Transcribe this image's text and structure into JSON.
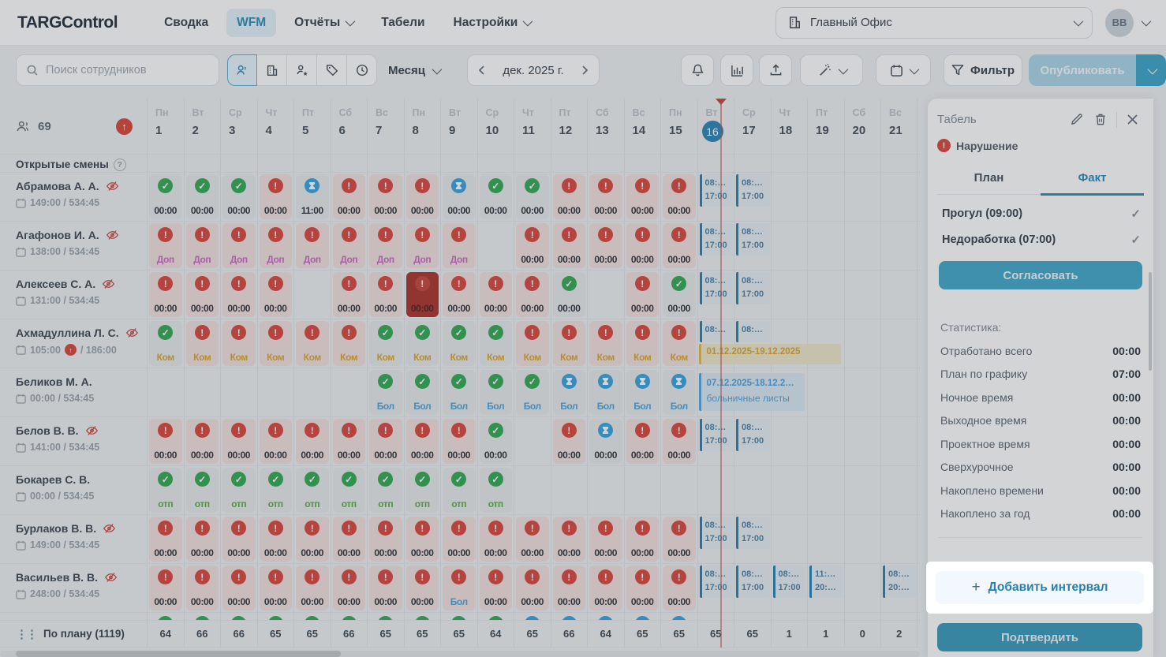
{
  "topnav": {
    "logo": "TARGControl",
    "items": [
      {
        "label": "Сводка",
        "active": false,
        "dropdown": false
      },
      {
        "label": "WFM",
        "active": true,
        "dropdown": false
      },
      {
        "label": "Отчёты",
        "active": false,
        "dropdown": true
      },
      {
        "label": "Табели",
        "active": false,
        "dropdown": false
      },
      {
        "label": "Настройки",
        "active": false,
        "dropdown": true
      }
    ],
    "office": "Главный Офис",
    "avatar": "BB"
  },
  "toolbar": {
    "search_placeholder": "Поиск сотрудников",
    "view_label": "Месяц",
    "period": "дек. 2025 г.",
    "filter_label": "Фильтр",
    "publish_label": "Опубликовать"
  },
  "icons": {
    "toolbar_group": [
      "employees-icon",
      "departments-icon",
      "positions-icon",
      "tags-icon",
      "shifts-icon"
    ],
    "toolbar_right": [
      "bell-icon",
      "chart-icon",
      "upload-icon",
      "magic-wand-icon",
      "calendar-icon",
      "funnel-icon"
    ]
  },
  "grid": {
    "employee_count": "69",
    "open_shifts_label": "Открытые смены",
    "current_day": "16",
    "days": [
      {
        "dw": "Пн",
        "n": "1"
      },
      {
        "dw": "Вт",
        "n": "2"
      },
      {
        "dw": "Ср",
        "n": "3"
      },
      {
        "dw": "Чт",
        "n": "4"
      },
      {
        "dw": "Пт",
        "n": "5"
      },
      {
        "dw": "Сб",
        "n": "6"
      },
      {
        "dw": "Вс",
        "n": "7"
      },
      {
        "dw": "Пн",
        "n": "8"
      },
      {
        "dw": "Вт",
        "n": "9"
      },
      {
        "dw": "Ср",
        "n": "10"
      },
      {
        "dw": "Чт",
        "n": "11"
      },
      {
        "dw": "Пт",
        "n": "12"
      },
      {
        "dw": "Сб",
        "n": "13"
      },
      {
        "dw": "Вс",
        "n": "14"
      },
      {
        "dw": "Пн",
        "n": "15"
      },
      {
        "dw": "Вт",
        "n": "16"
      },
      {
        "dw": "Ср",
        "n": "17"
      },
      {
        "dw": "Чт",
        "n": "18"
      },
      {
        "dw": "Пт",
        "n": "19"
      },
      {
        "dw": "Сб",
        "n": "20"
      },
      {
        "dw": "Вс",
        "n": "21"
      }
    ],
    "employees": [
      {
        "name": "Абрамова А. А.",
        "hidden": true,
        "hours": "149:00 / 534:45",
        "cells": [
          {
            "t": "ok",
            "v": "00:00"
          },
          {
            "t": "ok",
            "v": "00:00"
          },
          {
            "t": "ok",
            "v": "00:00"
          },
          {
            "t": "viol",
            "v": "00:00"
          },
          {
            "t": "wait",
            "v": "11:00"
          },
          {
            "t": "viol",
            "v": "00:00"
          },
          {
            "t": "viol",
            "v": "00:00"
          },
          {
            "t": "viol",
            "v": "00:00"
          },
          {
            "t": "wait",
            "v": "00:00"
          },
          {
            "t": "ok",
            "v": "00:00"
          },
          {
            "t": "ok",
            "v": "00:00"
          },
          {
            "t": "viol",
            "v": "00:00"
          },
          {
            "t": "viol",
            "v": "00:00"
          },
          {
            "t": "viol",
            "v": "00:00"
          },
          {
            "t": "viol",
            "v": "00:00"
          },
          {
            "t": "int",
            "a": "08:…",
            "b": "17:00"
          },
          {
            "t": "int",
            "a": "08:…",
            "b": "17:00"
          },
          null,
          null,
          null,
          null
        ]
      },
      {
        "name": "Агафонов И. А.",
        "hidden": true,
        "hours": "138:00 / 534:45",
        "cells": [
          {
            "t": "viol",
            "v": "Доп",
            "c": "dop"
          },
          {
            "t": "viol",
            "v": "Доп",
            "c": "dop"
          },
          {
            "t": "viol",
            "v": "Доп",
            "c": "dop"
          },
          {
            "t": "viol",
            "v": "Доп",
            "c": "dop"
          },
          {
            "t": "viol",
            "v": "Доп",
            "c": "dop"
          },
          {
            "t": "viol",
            "v": "Доп",
            "c": "dop"
          },
          {
            "t": "viol",
            "v": "Доп",
            "c": "dop"
          },
          {
            "t": "viol",
            "v": "Доп",
            "c": "dop"
          },
          {
            "t": "viol",
            "v": "Доп",
            "c": "dop"
          },
          null,
          {
            "t": "viol",
            "v": "00:00"
          },
          {
            "t": "viol",
            "v": "00:00"
          },
          {
            "t": "viol",
            "v": "00:00"
          },
          {
            "t": "viol",
            "v": "00:00"
          },
          {
            "t": "viol",
            "v": "00:00"
          },
          {
            "t": "int",
            "a": "08:…",
            "b": "17:00"
          },
          {
            "t": "int",
            "a": "08:…",
            "b": "17:00"
          },
          null,
          null,
          null,
          null
        ]
      },
      {
        "name": "Алексеев С. А.",
        "hidden": true,
        "hours": "131:00 / 534:45",
        "cells": [
          {
            "t": "viol",
            "v": "00:00"
          },
          {
            "t": "viol",
            "v": "00:00"
          },
          {
            "t": "viol",
            "v": "00:00"
          },
          {
            "t": "viol",
            "v": "00:00"
          },
          null,
          {
            "t": "viol",
            "v": "00:00"
          },
          {
            "t": "viol",
            "v": "00:00"
          },
          {
            "t": "sel",
            "v": "00:00"
          },
          {
            "t": "viol",
            "v": "00:00"
          },
          {
            "t": "viol",
            "v": "00:00"
          },
          {
            "t": "viol",
            "v": "00:00"
          },
          {
            "t": "ok",
            "v": "00:00"
          },
          null,
          {
            "t": "viol",
            "v": "00:00"
          },
          {
            "t": "ok",
            "v": "00:00"
          },
          {
            "t": "int",
            "a": "08:…",
            "b": "17:00"
          },
          {
            "t": "int",
            "a": "08:…",
            "b": "17:00"
          },
          null,
          null,
          null,
          null
        ]
      },
      {
        "name": "Ахмадуллина Л. С.",
        "hidden": true,
        "hours": "105:00",
        "hours2": "/ 186:00",
        "hours_alert": true,
        "cells": [
          {
            "t": "ok",
            "v": "Ком",
            "c": "kom"
          },
          {
            "t": "viol",
            "v": "Ком",
            "c": "kom"
          },
          {
            "t": "viol",
            "v": "Ком",
            "c": "kom"
          },
          {
            "t": "viol",
            "v": "Ком",
            "c": "kom"
          },
          {
            "t": "viol",
            "v": "Ком",
            "c": "kom"
          },
          {
            "t": "viol",
            "v": "Ком",
            "c": "kom"
          },
          {
            "t": "ok",
            "v": "Ком",
            "c": "kom"
          },
          {
            "t": "ok",
            "v": "Ком",
            "c": "kom"
          },
          {
            "t": "ok",
            "v": "Ком",
            "c": "kom"
          },
          {
            "t": "ok",
            "v": "Ком",
            "c": "kom"
          },
          {
            "t": "viol",
            "v": "Ком",
            "c": "kom"
          },
          {
            "t": "viol",
            "v": "Ком",
            "c": "kom"
          },
          {
            "t": "viol",
            "v": "Ком",
            "c": "kom"
          },
          {
            "t": "viol",
            "v": "Ком",
            "c": "kom"
          },
          {
            "t": "viol",
            "v": "Ком",
            "c": "kom"
          },
          {
            "t": "int",
            "a": "08:…"
          },
          {
            "t": "int",
            "a": "08:…"
          },
          null,
          null,
          null,
          null
        ],
        "banner": {
          "day": 16,
          "w": 180,
          "color": "orange",
          "lines": [
            "01.12.2025-19.12.2025"
          ]
        }
      },
      {
        "name": "Беликов М. А.",
        "hidden": false,
        "hours": "00:00 / 534:45",
        "cells": [
          null,
          null,
          null,
          null,
          null,
          null,
          {
            "t": "ok",
            "v": "Бол",
            "c": "bol"
          },
          {
            "t": "ok",
            "v": "Бол",
            "c": "bol"
          },
          {
            "t": "ok",
            "v": "Бол",
            "c": "bol"
          },
          {
            "t": "ok",
            "v": "Бол",
            "c": "bol"
          },
          {
            "t": "ok",
            "v": "Бол",
            "c": "bol"
          },
          {
            "t": "wait",
            "v": "Бол",
            "c": "bol"
          },
          {
            "t": "wait",
            "v": "Бол",
            "c": "bol"
          },
          {
            "t": "wait",
            "v": "Бол",
            "c": "bol"
          },
          {
            "t": "wait",
            "v": "Бол",
            "c": "bol"
          },
          null,
          null,
          null,
          null,
          null,
          null
        ],
        "banner": {
          "day": 16,
          "w": 134,
          "color": "blue",
          "lines": [
            "07.12.2025-18.12.2…",
            "больничные листы"
          ]
        }
      },
      {
        "name": "Белов В. В.",
        "hidden": true,
        "hours": "141:00 / 534:45",
        "cells": [
          {
            "t": "viol",
            "v": "00:00"
          },
          {
            "t": "viol",
            "v": "00:00"
          },
          {
            "t": "viol",
            "v": "00:00"
          },
          {
            "t": "viol",
            "v": "00:00"
          },
          {
            "t": "viol",
            "v": "00:00"
          },
          {
            "t": "viol",
            "v": "00:00"
          },
          {
            "t": "viol",
            "v": "00:00"
          },
          {
            "t": "viol",
            "v": "00:00"
          },
          {
            "t": "viol",
            "v": "00:00"
          },
          {
            "t": "ok",
            "v": "00:00"
          },
          null,
          {
            "t": "viol",
            "v": "00:00"
          },
          {
            "t": "wait",
            "v": "00:00"
          },
          {
            "t": "viol",
            "v": "00:00"
          },
          {
            "t": "viol",
            "v": "00:00"
          },
          {
            "t": "int",
            "a": "08:…",
            "b": "17:00"
          },
          {
            "t": "int",
            "a": "08:…",
            "b": "17:00"
          },
          null,
          null,
          null,
          null
        ]
      },
      {
        "name": "Бокарев С. В.",
        "hidden": false,
        "hours": "00:00 / 534:45",
        "cells": [
          {
            "t": "ok",
            "v": "отп",
            "c": "otp"
          },
          {
            "t": "ok",
            "v": "отп",
            "c": "otp"
          },
          {
            "t": "ok",
            "v": "отп",
            "c": "otp"
          },
          {
            "t": "ok",
            "v": "отп",
            "c": "otp"
          },
          {
            "t": "ok",
            "v": "отп",
            "c": "otp"
          },
          {
            "t": "ok",
            "v": "отп",
            "c": "otp"
          },
          {
            "t": "ok",
            "v": "отп",
            "c": "otp"
          },
          {
            "t": "ok",
            "v": "отп",
            "c": "otp"
          },
          {
            "t": "ok",
            "v": "отп",
            "c": "otp"
          },
          {
            "t": "ok",
            "v": "отп",
            "c": "otp"
          },
          null,
          null,
          null,
          null,
          null,
          null,
          null,
          null,
          null,
          null,
          null
        ]
      },
      {
        "name": "Бурлаков В. В.",
        "hidden": true,
        "hours": "149:00 / 534:45",
        "cells": [
          {
            "t": "viol",
            "v": "00:00"
          },
          {
            "t": "viol",
            "v": "00:00"
          },
          {
            "t": "viol",
            "v": "00:00"
          },
          {
            "t": "viol",
            "v": "00:00"
          },
          {
            "t": "viol",
            "v": "00:00"
          },
          {
            "t": "viol",
            "v": "00:00"
          },
          {
            "t": "viol",
            "v": "00:00"
          },
          {
            "t": "viol",
            "v": "00:00"
          },
          {
            "t": "viol",
            "v": "00:00"
          },
          {
            "t": "viol",
            "v": "00:00"
          },
          {
            "t": "viol",
            "v": "00:00"
          },
          {
            "t": "viol",
            "v": "00:00"
          },
          {
            "t": "viol",
            "v": "00:00"
          },
          {
            "t": "viol",
            "v": "00:00"
          },
          {
            "t": "viol",
            "v": "00:00"
          },
          {
            "t": "int",
            "a": "08:…",
            "b": "17:00"
          },
          {
            "t": "int",
            "a": "08:…",
            "b": "17:00"
          },
          null,
          null,
          null,
          null
        ]
      },
      {
        "name": "Васильев В. В.",
        "hidden": true,
        "hours": "248:00 / 534:45",
        "cells": [
          {
            "t": "viol",
            "v": "00:00"
          },
          {
            "t": "viol",
            "v": "00:00"
          },
          {
            "t": "viol",
            "v": "00:00"
          },
          {
            "t": "viol",
            "v": "00:00"
          },
          {
            "t": "viol",
            "v": "00:00"
          },
          {
            "t": "viol",
            "v": "00:00"
          },
          {
            "t": "viol",
            "v": "00:00"
          },
          {
            "t": "viol",
            "v": "00:00"
          },
          {
            "t": "viol",
            "v": "Бол",
            "c": "bol"
          },
          {
            "t": "viol",
            "v": "00:00"
          },
          {
            "t": "viol",
            "v": "00:00"
          },
          {
            "t": "viol",
            "v": "00:00"
          },
          {
            "t": "viol",
            "v": "00:00"
          },
          {
            "t": "viol",
            "v": "00:00"
          },
          {
            "t": "viol",
            "v": "00:00"
          },
          {
            "t": "int",
            "a": "08:…",
            "b": "17:00"
          },
          {
            "t": "int",
            "a": "08:…",
            "b": "17:00"
          },
          {
            "t": "int",
            "a": "08:…",
            "b": "17:00"
          },
          {
            "t": "int",
            "a": "11:…",
            "b": "20:…"
          },
          null,
          {
            "t": "int",
            "a": "08:…",
            "b": "20:…"
          }
        ]
      },
      {
        "partial": true,
        "icons": [
          "ok",
          "ok",
          "ok",
          "ok",
          "ok",
          "ok",
          "ok",
          "ok",
          "ok",
          "ok",
          "wait",
          "wait",
          "wait",
          "wait",
          "wait"
        ]
      }
    ],
    "footer": {
      "label": "По плану (1119)",
      "values": [
        "64",
        "66",
        "66",
        "65",
        "65",
        "66",
        "65",
        "65",
        "65",
        "64",
        "65",
        "66",
        "64",
        "65",
        "65",
        "65",
        "65",
        "1",
        "1",
        "0",
        "2"
      ]
    }
  },
  "panel": {
    "title": "Табель",
    "violation_label": "Нарушение",
    "tabs": [
      {
        "label": "План",
        "active": false
      },
      {
        "label": "Факт",
        "active": true
      }
    ],
    "violations": [
      {
        "label": "Прогул (09:00)"
      },
      {
        "label": "Недоработка (07:00)"
      }
    ],
    "approve_label": "Согласовать",
    "stats_title": "Статистика:",
    "stats": [
      {
        "label": "Отработано всего",
        "value": "00:00"
      },
      {
        "label": "План по графику",
        "value": "07:00"
      },
      {
        "label": "Ночное время",
        "value": "00:00"
      },
      {
        "label": "Выходное время",
        "value": "00:00"
      },
      {
        "label": "Проектное время",
        "value": "00:00"
      },
      {
        "label": "Сверхурочное",
        "value": "00:00"
      },
      {
        "label": "Накоплено времени",
        "value": "00:00"
      },
      {
        "label": "Накоплено за год",
        "value": "00:00"
      }
    ],
    "add_interval_label": "Добавить интервал",
    "confirm_label": "Подтвердить"
  },
  "colors": {
    "accent_blue": "#1f86b5",
    "button_teal": "#2d93b8",
    "violation_red": "#d63a2e",
    "ok_green": "#26a347",
    "pending_blue": "#2b9ddd",
    "selected_cell": "#a8261d"
  }
}
